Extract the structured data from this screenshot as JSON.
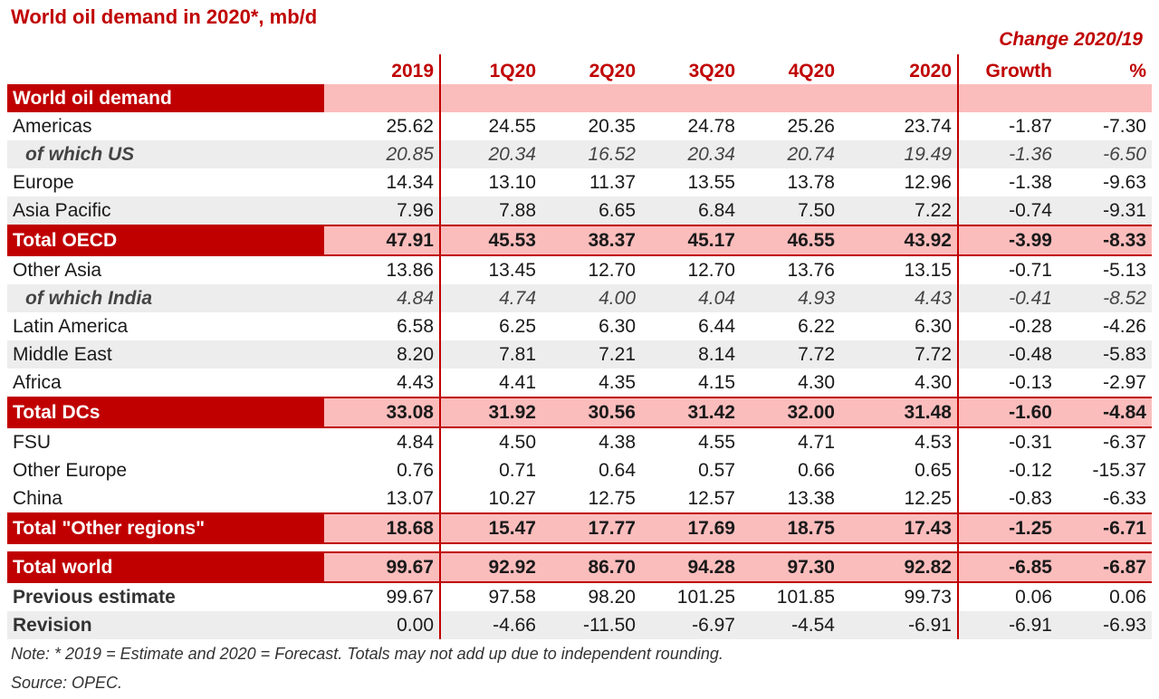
{
  "chart_data": {
    "type": "table",
    "title": "World oil demand in 2020*, mb/d",
    "change_header": "Change 2020/19",
    "columns": [
      "2019",
      "1Q20",
      "2Q20",
      "3Q20",
      "4Q20",
      "2020",
      "Growth",
      "%"
    ],
    "section_label": "World oil demand",
    "rows": [
      {
        "label": "Americas",
        "values": [
          "25.62",
          "24.55",
          "20.35",
          "24.78",
          "25.26",
          "23.74",
          "-1.87",
          "-7.30"
        ]
      },
      {
        "label": "of which US",
        "values": [
          "20.85",
          "20.34",
          "16.52",
          "20.34",
          "20.74",
          "19.49",
          "-1.36",
          "-6.50"
        ]
      },
      {
        "label": "Europe",
        "values": [
          "14.34",
          "13.10",
          "11.37",
          "13.55",
          "13.78",
          "12.96",
          "-1.38",
          "-9.63"
        ]
      },
      {
        "label": "Asia Pacific",
        "values": [
          "7.96",
          "7.88",
          "6.65",
          "6.84",
          "7.50",
          "7.22",
          "-0.74",
          "-9.31"
        ]
      },
      {
        "label": "Total OECD",
        "values": [
          "47.91",
          "45.53",
          "38.37",
          "45.17",
          "46.55",
          "43.92",
          "-3.99",
          "-8.33"
        ]
      },
      {
        "label": "Other Asia",
        "values": [
          "13.86",
          "13.45",
          "12.70",
          "12.70",
          "13.76",
          "13.15",
          "-0.71",
          "-5.13"
        ]
      },
      {
        "label": "of which India",
        "values": [
          "4.84",
          "4.74",
          "4.00",
          "4.04",
          "4.93",
          "4.43",
          "-0.41",
          "-8.52"
        ]
      },
      {
        "label": "Latin America",
        "values": [
          "6.58",
          "6.25",
          "6.30",
          "6.44",
          "6.22",
          "6.30",
          "-0.28",
          "-4.26"
        ]
      },
      {
        "label": "Middle East",
        "values": [
          "8.20",
          "7.81",
          "7.21",
          "8.14",
          "7.72",
          "7.72",
          "-0.48",
          "-5.83"
        ]
      },
      {
        "label": "Africa",
        "values": [
          "4.43",
          "4.41",
          "4.35",
          "4.15",
          "4.30",
          "4.30",
          "-0.13",
          "-2.97"
        ]
      },
      {
        "label": "Total DCs",
        "values": [
          "33.08",
          "31.92",
          "30.56",
          "31.42",
          "32.00",
          "31.48",
          "-1.60",
          "-4.84"
        ]
      },
      {
        "label": "FSU",
        "values": [
          "4.84",
          "4.50",
          "4.38",
          "4.55",
          "4.71",
          "4.53",
          "-0.31",
          "-6.37"
        ]
      },
      {
        "label": "Other Europe",
        "values": [
          "0.76",
          "0.71",
          "0.64",
          "0.57",
          "0.66",
          "0.65",
          "-0.12",
          "-15.37"
        ]
      },
      {
        "label": "China",
        "values": [
          "13.07",
          "10.27",
          "12.75",
          "12.57",
          "13.38",
          "12.25",
          "-0.83",
          "-6.33"
        ]
      },
      {
        "label": "Total \"Other regions\"",
        "values": [
          "18.68",
          "15.47",
          "17.77",
          "17.69",
          "18.75",
          "17.43",
          "-1.25",
          "-6.71"
        ]
      },
      {
        "label": "Total world",
        "values": [
          "99.67",
          "92.92",
          "86.70",
          "94.28",
          "97.30",
          "92.82",
          "-6.85",
          "-6.87"
        ]
      },
      {
        "label": "Previous estimate",
        "values": [
          "99.67",
          "97.58",
          "98.20",
          "101.25",
          "101.85",
          "99.73",
          "0.06",
          "0.06"
        ]
      },
      {
        "label": "Revision",
        "values": [
          "0.00",
          "-4.66",
          "-11.50",
          "-6.97",
          "-4.54",
          "-6.91",
          "-6.91",
          "-6.93"
        ]
      }
    ],
    "note": "Note: * 2019 = Estimate and 2020 = Forecast. Totals may not add up due to independent rounding.",
    "source": "Source: OPEC."
  },
  "colors": {
    "accent": "#c00000",
    "highlight": "#fbbcbc",
    "stripe": "#ededed"
  }
}
